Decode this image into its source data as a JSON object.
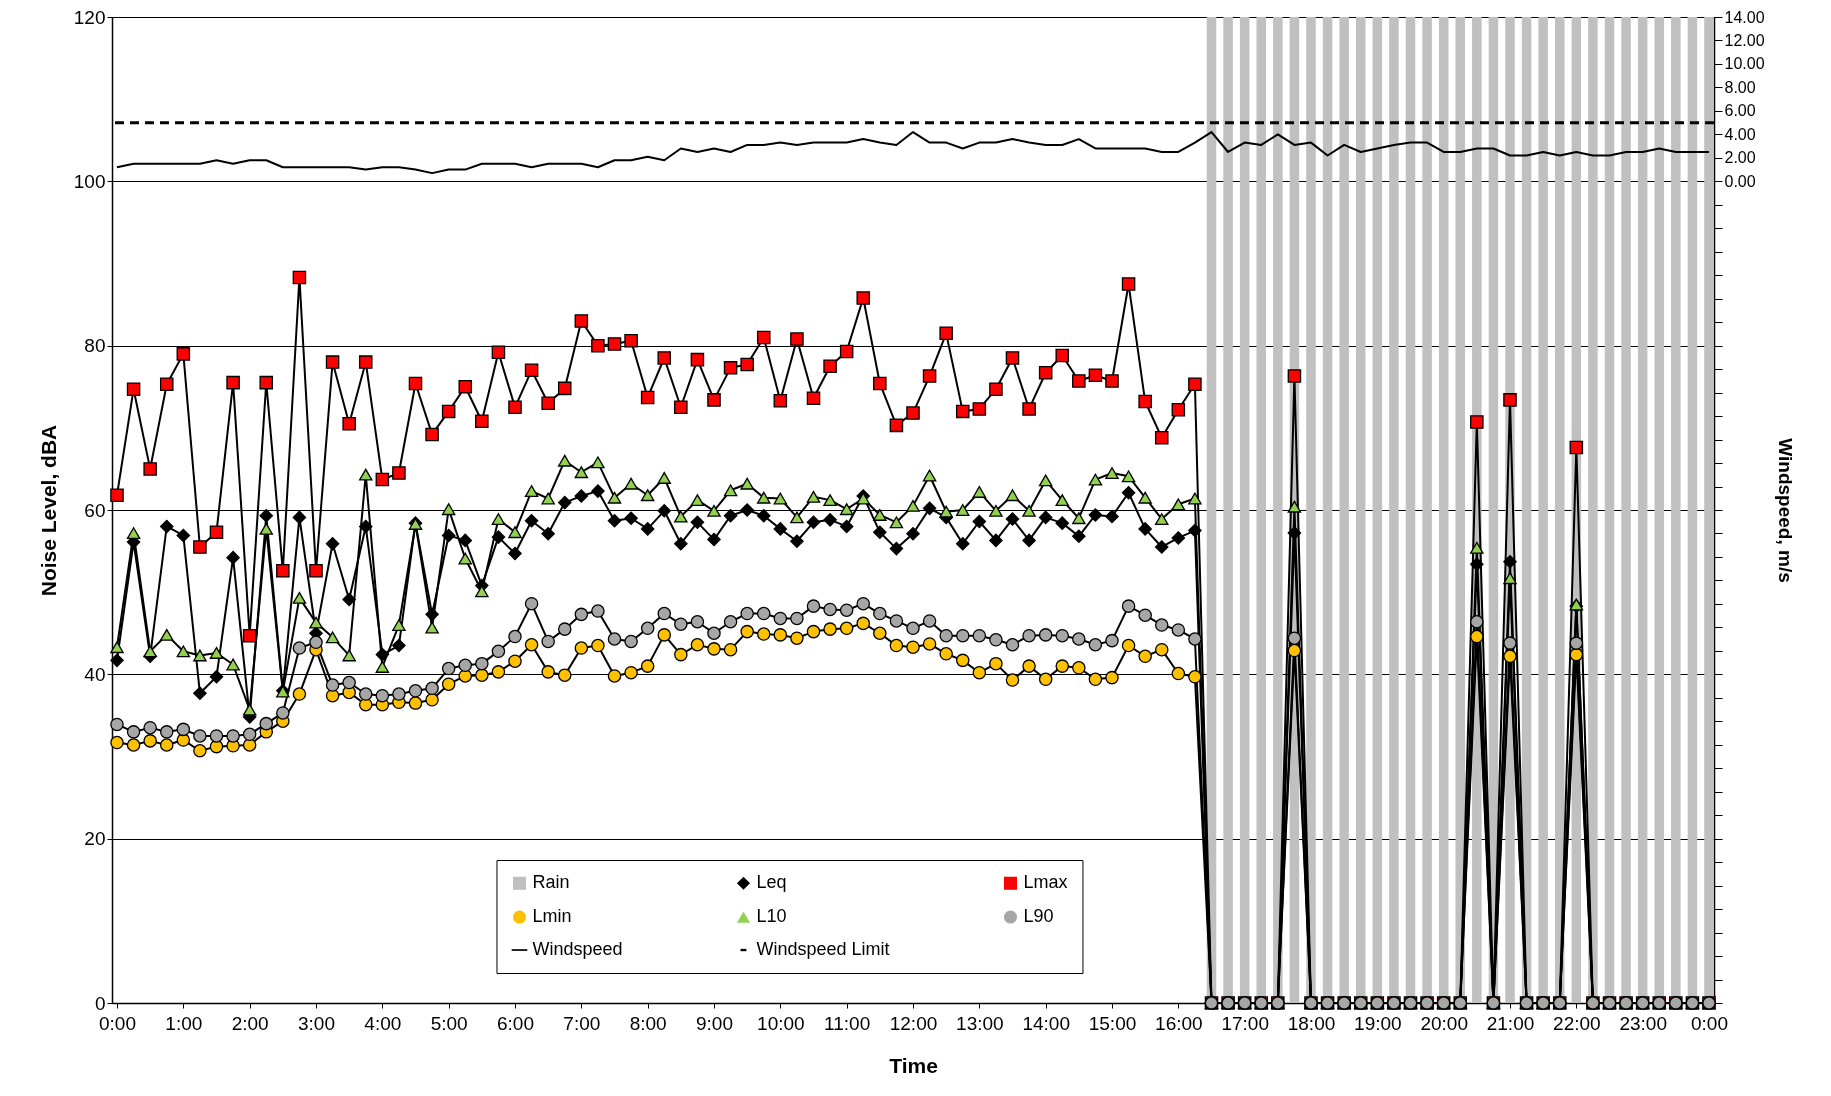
{
  "chart_data": {
    "type": "line",
    "xlabel": "Time",
    "ylabel": "Noise Level, dBA",
    "y2label": "Windspeed, m/s",
    "x": [
      0,
      0.25,
      0.5,
      0.75,
      1,
      1.25,
      1.5,
      1.75,
      2,
      2.25,
      2.5,
      2.75,
      3,
      3.25,
      3.5,
      3.75,
      4,
      4.25,
      4.5,
      4.75,
      5,
      5.25,
      5.5,
      5.75,
      6,
      6.25,
      6.5,
      6.75,
      7,
      7.25,
      7.5,
      7.75,
      8,
      8.25,
      8.5,
      8.75,
      9,
      9.25,
      9.5,
      9.75,
      10,
      10.25,
      10.5,
      10.75,
      11,
      11.25,
      11.5,
      11.75,
      12,
      12.25,
      12.5,
      12.75,
      13,
      13.25,
      13.5,
      13.75,
      14,
      14.25,
      14.5,
      14.75,
      15,
      15.25,
      15.5,
      15.75,
      16,
      16.25,
      16.5,
      16.75,
      17,
      17.25,
      17.5,
      17.75,
      18,
      18.25,
      18.5,
      18.75,
      19,
      19.25,
      19.5,
      19.75,
      20,
      20.25,
      20.5,
      20.75,
      21,
      21.25,
      21.5,
      21.75,
      22,
      22.25,
      22.5,
      22.75,
      23,
      23.25,
      23.5,
      23.75,
      24
    ],
    "xlim": [
      0,
      24
    ],
    "xticks": [
      {
        "value": 0,
        "label": "0:00"
      },
      {
        "value": 1,
        "label": "1:00"
      },
      {
        "value": 2,
        "label": "2:00"
      },
      {
        "value": 3,
        "label": "3:00"
      },
      {
        "value": 4,
        "label": "4:00"
      },
      {
        "value": 5,
        "label": "5:00"
      },
      {
        "value": 6,
        "label": "6:00"
      },
      {
        "value": 7,
        "label": "7:00"
      },
      {
        "value": 8,
        "label": "8:00"
      },
      {
        "value": 9,
        "label": "9:00"
      },
      {
        "value": 10,
        "label": "10:00"
      },
      {
        "value": 11,
        "label": "11:00"
      },
      {
        "value": 12,
        "label": "12:00"
      },
      {
        "value": 13,
        "label": "13:00"
      },
      {
        "value": 14,
        "label": "14:00"
      },
      {
        "value": 15,
        "label": "15:00"
      },
      {
        "value": 16,
        "label": "16:00"
      },
      {
        "value": 17,
        "label": "17:00"
      },
      {
        "value": 18,
        "label": "18:00"
      },
      {
        "value": 19,
        "label": "19:00"
      },
      {
        "value": 20,
        "label": "20:00"
      },
      {
        "value": 21,
        "label": "21:00"
      },
      {
        "value": 22,
        "label": "22:00"
      },
      {
        "value": 23,
        "label": "23:00"
      },
      {
        "value": 24,
        "label": "0:00"
      }
    ],
    "ylim": [
      0,
      120
    ],
    "yticks": [
      0,
      20,
      40,
      60,
      80,
      100,
      120
    ],
    "y2lim": [
      -70,
      14
    ],
    "y2ticks": [
      {
        "value": -70,
        "label": null
      },
      {
        "value": -68,
        "label": null
      },
      {
        "value": -66,
        "label": null
      },
      {
        "value": -64,
        "label": null
      },
      {
        "value": -62,
        "label": null
      },
      {
        "value": -60,
        "label": null
      },
      {
        "value": -58,
        "label": null
      },
      {
        "value": -56,
        "label": null
      },
      {
        "value": -54,
        "label": null
      },
      {
        "value": -52,
        "label": null
      },
      {
        "value": -50,
        "label": null
      },
      {
        "value": -48,
        "label": null
      },
      {
        "value": -46,
        "label": null
      },
      {
        "value": -44,
        "label": null
      },
      {
        "value": -42,
        "label": null
      },
      {
        "value": -40,
        "label": null
      },
      {
        "value": -38,
        "label": null
      },
      {
        "value": -36,
        "label": null
      },
      {
        "value": -34,
        "label": null
      },
      {
        "value": -32,
        "label": null
      },
      {
        "value": -30,
        "label": null
      },
      {
        "value": -28,
        "label": null
      },
      {
        "value": -26,
        "label": null
      },
      {
        "value": -24,
        "label": null
      },
      {
        "value": -22,
        "label": null
      },
      {
        "value": -20,
        "label": null
      },
      {
        "value": -18,
        "label": null
      },
      {
        "value": -16,
        "label": null
      },
      {
        "value": -14,
        "label": null
      },
      {
        "value": -12,
        "label": null
      },
      {
        "value": -10,
        "label": null
      },
      {
        "value": -8,
        "label": null
      },
      {
        "value": -6,
        "label": null
      },
      {
        "value": -4,
        "label": null
      },
      {
        "value": -2,
        "label": null
      },
      {
        "value": 0,
        "label": "0.00"
      },
      {
        "value": 2,
        "label": "2.00"
      },
      {
        "value": 4,
        "label": "4.00"
      },
      {
        "value": 6,
        "label": "6.00"
      },
      {
        "value": 8,
        "label": "8.00"
      },
      {
        "value": 10,
        "label": "10.00"
      },
      {
        "value": 12,
        "label": "12.00"
      },
      {
        "value": 14,
        "label": "14.00"
      }
    ],
    "grid": "y",
    "legend": "bottom",
    "series": [
      {
        "name": "Rain",
        "type": "bar",
        "color": "#c0c0c0",
        "x": [
          16.5,
          16.75,
          17,
          17.25,
          17.5,
          17.75,
          18,
          18.25,
          18.5,
          18.75,
          19,
          19.25,
          19.5,
          19.75,
          20,
          20.25,
          20.5,
          20.75,
          21,
          21.25,
          21.5,
          21.75,
          22,
          22.25,
          22.5,
          22.75,
          23,
          23.25,
          23.5,
          23.75,
          24
        ],
        "values": [
          120,
          120,
          120,
          120,
          120,
          120,
          120,
          120,
          120,
          120,
          120,
          120,
          120,
          120,
          120,
          120,
          120,
          120,
          120,
          120,
          120,
          120,
          120,
          120,
          120,
          120,
          120,
          120,
          120,
          120,
          120
        ]
      },
      {
        "name": "Leq",
        "color": "#000000",
        "marker": "diamond",
        "values": [
          41.7,
          56.1,
          42.2,
          58.0,
          56.9,
          37.7,
          39.7,
          54.2,
          34.8,
          59.3,
          38.0,
          59.1,
          45.0,
          55.9,
          49.1,
          58.0,
          42.4,
          43.5,
          58.4,
          47.3,
          56.9,
          56.3,
          50.8,
          56.7,
          54.7,
          58.7,
          57.1,
          60.9,
          61.7,
          62.3,
          58.7,
          59.0,
          57.7,
          59.9,
          55.9,
          58.5,
          56.4,
          59.3,
          60.0,
          59.3,
          57.7,
          56.2,
          58.5,
          58.8,
          58.0,
          61.7,
          57.3,
          55.3,
          57.1,
          60.2,
          59.1,
          55.9,
          58.6,
          56.3,
          58.9,
          56.3,
          59.1,
          58.4,
          56.8,
          59.4,
          59.2,
          62.1,
          57.7,
          55.5,
          56.6,
          57.5,
          0,
          0,
          0,
          0,
          0,
          57.2,
          0,
          0,
          0,
          0,
          0,
          0,
          0,
          0,
          0,
          0,
          53.4,
          0,
          53.7,
          0,
          0,
          0,
          48.3,
          0,
          0,
          0,
          0,
          0,
          0,
          0,
          0
        ]
      },
      {
        "name": "Lmax",
        "color": "#ff0000",
        "marker": "square",
        "values": [
          61.8,
          74.7,
          65.0,
          75.3,
          79.0,
          55.5,
          57.3,
          75.5,
          44.7,
          75.5,
          52.6,
          88.3,
          52.6,
          78.0,
          70.5,
          78.0,
          63.7,
          64.5,
          75.4,
          69.2,
          72.0,
          75.0,
          70.8,
          79.2,
          72.5,
          77.0,
          73.0,
          74.8,
          83.0,
          80.0,
          80.2,
          80.6,
          73.7,
          78.5,
          72.5,
          78.3,
          73.4,
          77.3,
          77.7,
          81.0,
          73.3,
          80.8,
          73.6,
          77.5,
          79.3,
          85.8,
          75.4,
          70.3,
          71.8,
          76.3,
          81.5,
          72.0,
          72.3,
          74.7,
          78.5,
          72.3,
          76.7,
          78.8,
          75.7,
          76.4,
          75.7,
          87.5,
          73.2,
          68.8,
          72.2,
          75.3,
          0,
          0,
          0,
          0,
          0,
          76.3,
          0,
          0,
          0,
          0,
          0,
          0,
          0,
          0,
          0,
          0,
          70.7,
          0,
          73.4,
          0,
          0,
          0,
          67.6,
          0,
          0,
          0,
          0,
          0,
          0,
          0,
          0
        ]
      },
      {
        "name": "Lmin",
        "color": "#ffc000",
        "marker": "circle",
        "values": [
          31.7,
          31.4,
          31.9,
          31.4,
          32.0,
          30.7,
          31.2,
          31.3,
          31.4,
          33.0,
          34.3,
          37.6,
          43.0,
          37.4,
          37.8,
          36.3,
          36.3,
          36.6,
          36.5,
          36.9,
          38.8,
          39.8,
          39.9,
          40.3,
          41.6,
          43.6,
          40.3,
          39.9,
          43.2,
          43.5,
          39.8,
          40.2,
          41.0,
          44.8,
          42.4,
          43.6,
          43.1,
          43.0,
          45.2,
          44.9,
          44.8,
          44.4,
          45.2,
          45.5,
          45.6,
          46.2,
          45.0,
          43.5,
          43.3,
          43.7,
          42.5,
          41.7,
          40.2,
          41.3,
          39.3,
          41.0,
          39.4,
          41.0,
          40.8,
          39.4,
          39.6,
          43.5,
          42.2,
          43.0,
          40.1,
          39.7,
          0,
          0,
          0,
          0,
          0,
          42.9,
          0,
          0,
          0,
          0,
          0,
          0,
          0,
          0,
          0,
          0,
          44.6,
          0,
          42.2,
          0,
          0,
          0,
          42.4,
          0,
          0,
          0,
          0,
          0,
          0,
          0,
          0
        ]
      },
      {
        "name": "L10",
        "color": "#92d050",
        "marker": "triangle",
        "values": [
          43.3,
          57.2,
          42.8,
          44.8,
          42.8,
          42.3,
          42.6,
          41.2,
          35.7,
          57.7,
          37.9,
          49.3,
          46.3,
          44.5,
          42.3,
          64.3,
          40.9,
          46.0,
          58.3,
          45.7,
          60.1,
          54.1,
          50.1,
          58.9,
          57.3,
          62.3,
          61.4,
          66.0,
          64.6,
          65.8,
          61.5,
          63.2,
          61.8,
          63.9,
          59.2,
          61.2,
          59.9,
          62.4,
          63.2,
          61.5,
          61.4,
          59.1,
          61.6,
          61.2,
          60.1,
          61.4,
          59.4,
          58.5,
          60.5,
          64.2,
          59.8,
          60.0,
          62.2,
          59.9,
          61.8,
          59.9,
          63.6,
          61.2,
          59.0,
          63.7,
          64.5,
          64.1,
          61.5,
          58.9,
          60.7,
          61.4,
          0,
          0,
          0,
          0,
          0,
          60.4,
          0,
          0,
          0,
          0,
          0,
          0,
          0,
          0,
          0,
          0,
          55.4,
          0,
          51.7,
          0,
          0,
          0,
          48.5,
          0,
          0,
          0,
          0,
          0,
          0,
          0,
          0
        ]
      },
      {
        "name": "L90",
        "color": "#a6a6a6",
        "marker": "circle",
        "values": [
          33.9,
          33.0,
          33.5,
          33.0,
          33.3,
          32.5,
          32.5,
          32.5,
          32.7,
          34.0,
          35.3,
          43.2,
          43.9,
          38.7,
          39.0,
          37.6,
          37.4,
          37.6,
          38.0,
          38.3,
          40.7,
          41.1,
          41.3,
          42.8,
          44.6,
          48.6,
          44.0,
          45.5,
          47.3,
          47.7,
          44.3,
          44.0,
          45.6,
          47.4,
          46.1,
          46.4,
          45.0,
          46.4,
          47.4,
          47.4,
          46.8,
          46.8,
          48.3,
          47.9,
          47.8,
          48.6,
          47.4,
          46.5,
          45.6,
          46.5,
          44.7,
          44.7,
          44.7,
          44.2,
          43.6,
          44.7,
          44.8,
          44.7,
          44.3,
          43.6,
          44.1,
          48.3,
          47.2,
          46.0,
          45.4,
          44.3,
          0,
          0,
          0,
          0,
          0,
          44.4,
          0,
          0,
          0,
          0,
          0,
          0,
          0,
          0,
          0,
          0,
          46.4,
          0,
          43.8,
          0,
          0,
          0,
          43.8,
          0,
          0,
          0,
          0,
          0,
          0,
          0,
          0
        ]
      },
      {
        "name": "Windspeed",
        "color": "#000000",
        "axis": "y2",
        "marker": "none",
        "values": [
          1.2,
          1.5,
          1.5,
          1.5,
          1.5,
          1.5,
          1.8,
          1.5,
          1.8,
          1.8,
          1.2,
          1.2,
          1.2,
          1.2,
          1.2,
          1.0,
          1.2,
          1.2,
          1.0,
          0.7,
          1.0,
          1.0,
          1.5,
          1.5,
          1.5,
          1.2,
          1.5,
          1.5,
          1.5,
          1.2,
          1.8,
          1.8,
          2.1,
          1.8,
          2.8,
          2.5,
          2.8,
          2.5,
          3.1,
          3.1,
          3.3,
          3.1,
          3.3,
          3.3,
          3.3,
          3.6,
          3.3,
          3.1,
          4.2,
          3.3,
          3.3,
          2.8,
          3.3,
          3.3,
          3.6,
          3.3,
          3.1,
          3.1,
          3.6,
          2.8,
          2.8,
          2.8,
          2.8,
          2.5,
          2.5,
          3.3,
          4.2,
          2.5,
          3.3,
          3.1,
          4.0,
          3.1,
          3.3,
          2.2,
          3.1,
          2.5,
          2.8,
          3.1,
          3.3,
          3.3,
          2.5,
          2.5,
          2.8,
          2.8,
          2.2,
          2.2,
          2.5,
          2.2,
          2.5,
          2.2,
          2.2,
          2.5,
          2.5,
          2.8,
          2.5,
          2.5,
          2.5
        ]
      }
    ],
    "ref_lines": [
      {
        "axis": "y2",
        "value": 5,
        "label": "Windspeed Limit",
        "color": "#000000",
        "line_style": "dashed"
      }
    ]
  }
}
